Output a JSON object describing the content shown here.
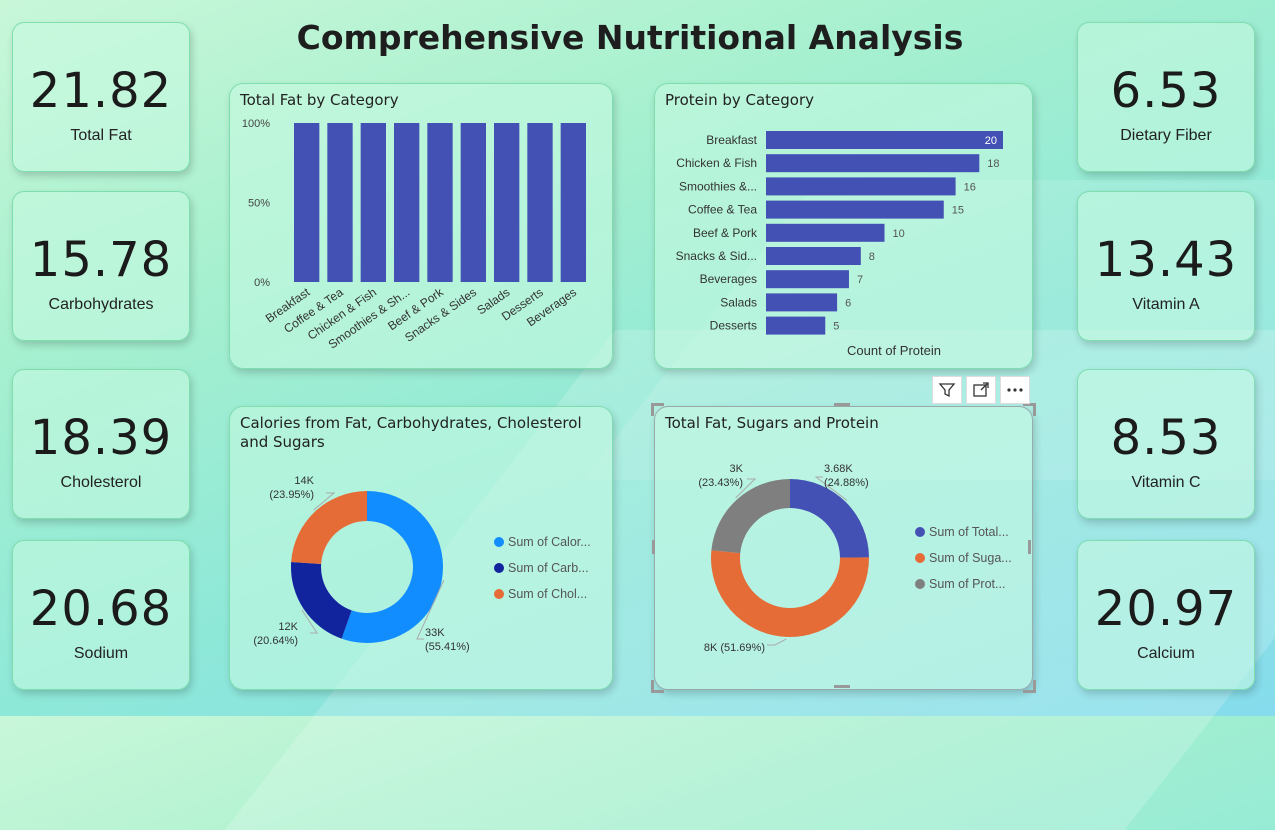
{
  "title": "Comprehensive Nutritional Analysis",
  "kpis_left": [
    {
      "value": "21.82",
      "label": "Total Fat"
    },
    {
      "value": "15.78",
      "label": "Carbohydrates"
    },
    {
      "value": "18.39",
      "label": "Cholesterol"
    },
    {
      "value": "20.68",
      "label": "Sodium"
    }
  ],
  "kpis_right": [
    {
      "value": "6.53",
      "label": "Dietary Fiber"
    },
    {
      "value": "13.43",
      "label": "Vitamin A"
    },
    {
      "value": "8.53",
      "label": "Vitamin C"
    },
    {
      "value": "20.97",
      "label": "Calcium"
    }
  ],
  "chart_data": [
    {
      "type": "bar",
      "title": "Total Fat by Category",
      "categories": [
        "Breakfast",
        "Coffee & Tea",
        "Chicken & Fish",
        "Smoothies & Sh...",
        "Beef & Pork",
        "Snacks & Sides",
        "Salads",
        "Desserts",
        "Beverages"
      ],
      "values": [
        100,
        100,
        100,
        100,
        100,
        100,
        100,
        100,
        100
      ],
      "yticks": [
        "0%",
        "50%",
        "100%"
      ],
      "ylim": [
        0,
        100
      ],
      "color": "#4350b4"
    },
    {
      "type": "bar",
      "orientation": "horizontal",
      "title": "Protein by Category",
      "categories": [
        "Breakfast",
        "Chicken & Fish",
        "Smoothies &...",
        "Coffee & Tea",
        "Beef & Pork",
        "Snacks & Sid...",
        "Beverages",
        "Salads",
        "Desserts"
      ],
      "values": [
        20,
        18,
        16,
        15,
        10,
        8,
        7,
        6,
        5
      ],
      "xlabel": "Count of Protein",
      "color": "#4350b4"
    },
    {
      "type": "pie",
      "style": "donut",
      "title": "Calories from Fat, Carbohydrates, Cholesterol and Sugars",
      "slices": [
        {
          "legend": "Sum of Calor...",
          "label": "33K",
          "pct": "(55.41%)",
          "value": 55.41,
          "color": "#118dff"
        },
        {
          "legend": "Sum of Carb...",
          "label": "12K",
          "pct": "(20.64%)",
          "value": 20.64,
          "color": "#12239e"
        },
        {
          "legend": "Sum of Chol...",
          "label": "14K",
          "pct": "(23.95%)",
          "value": 23.95,
          "color": "#e66c37"
        }
      ]
    },
    {
      "type": "pie",
      "style": "donut",
      "title": "Total Fat, Sugars and Protein",
      "slices": [
        {
          "legend": "Sum of Total...",
          "label": "3.68K",
          "pct": "(24.88%)",
          "value": 24.88,
          "color": "#4350b4"
        },
        {
          "legend": "Sum of Suga...",
          "label": "8K",
          "pct": "(51.69%)",
          "value": 51.69,
          "color": "#e66c37"
        },
        {
          "legend": "Sum of Prot...",
          "label": "3K",
          "pct": "(23.43%)",
          "value": 23.43,
          "color": "#7f7f7f"
        }
      ]
    }
  ],
  "toolbar": {
    "icons": [
      "filter-icon",
      "focus-mode-icon",
      "more-options-icon"
    ]
  }
}
